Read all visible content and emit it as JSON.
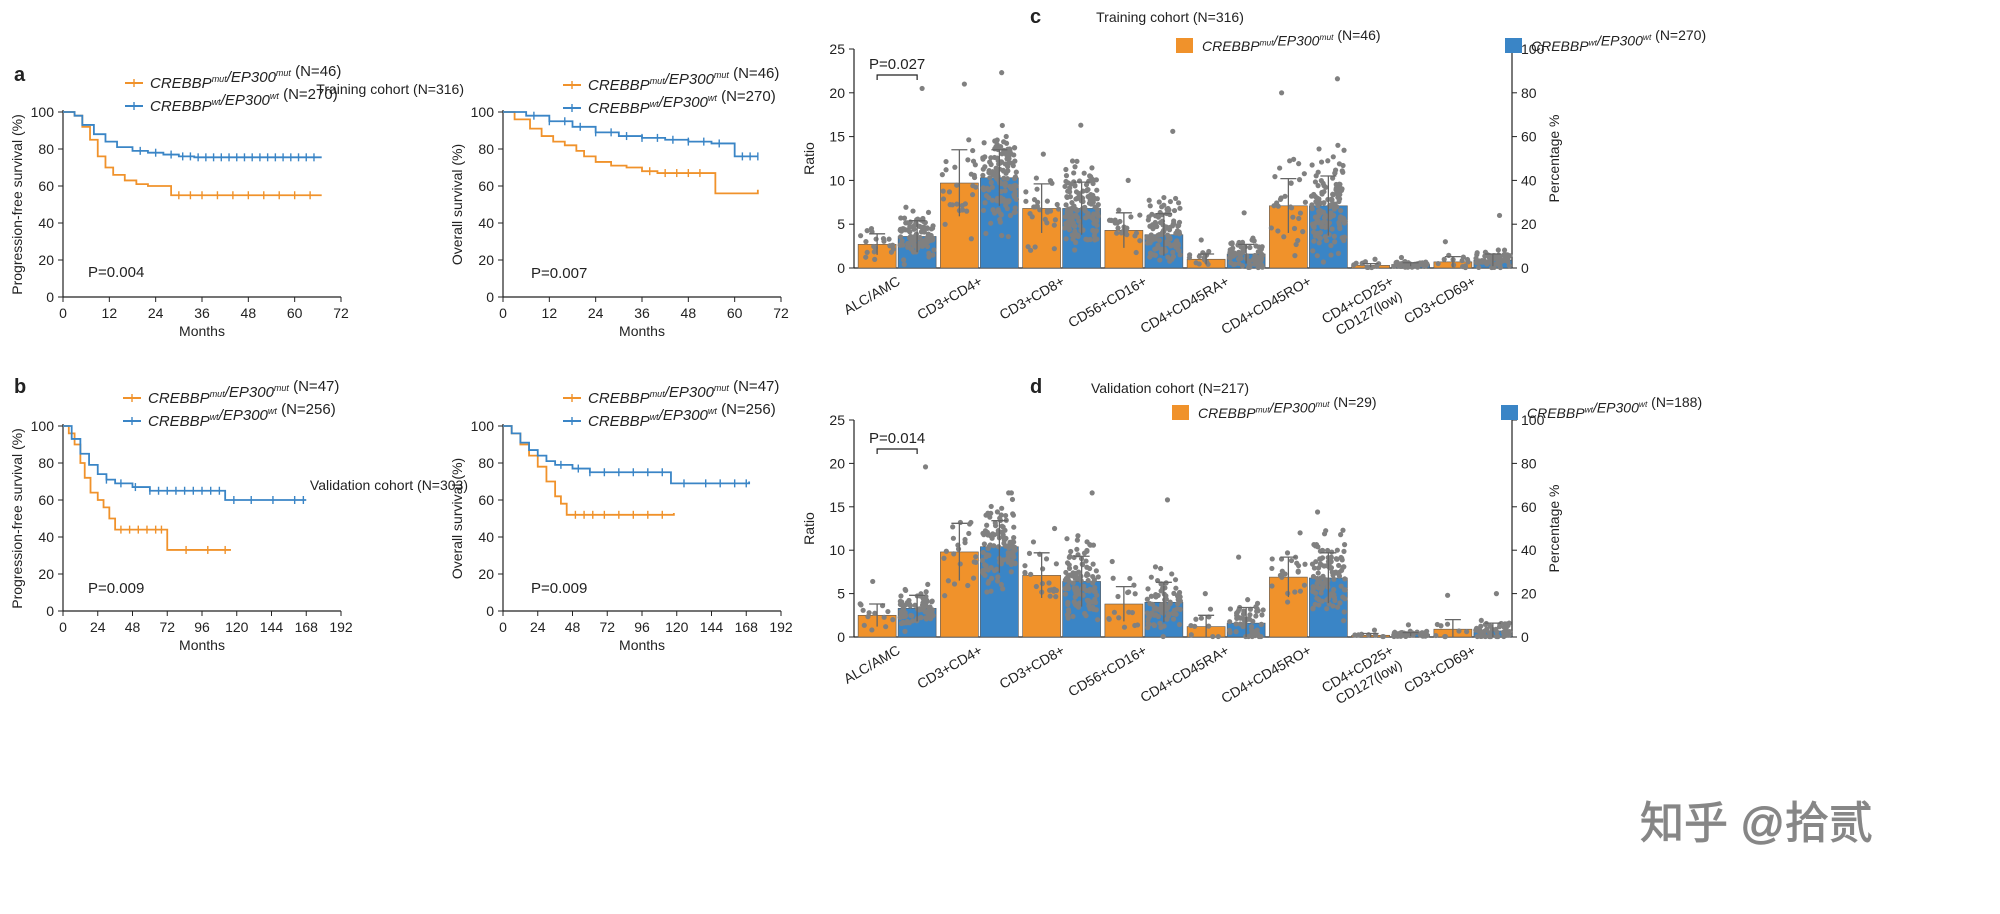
{
  "colors": {
    "orange": "#f0922b",
    "blue": "#3a85c6",
    "dot": "#808080",
    "axis": "#222222"
  },
  "chart_data": [
    {
      "panel": "a",
      "type": "line",
      "subtype": "kaplan-meier",
      "cohort_title": "Training cohort (N=316)",
      "ylabel": "Progression-free survival (%)",
      "xlabel": "Months",
      "xlim": [
        0,
        72
      ],
      "xticks": [
        0,
        12,
        24,
        36,
        48,
        60,
        72
      ],
      "ylim": [
        0,
        100
      ],
      "yticks": [
        0,
        20,
        40,
        60,
        80,
        100
      ],
      "pvalue": "P=0.004",
      "series": [
        {
          "name": "CREBBPmut/EP300mut (N=46)",
          "gene1": "CREBBP",
          "sup1": "mut",
          "gene2": "EP300",
          "sup2": "mut",
          "n": "(N=46)",
          "color": "orange",
          "points": [
            [
              0,
              100
            ],
            [
              3,
              98
            ],
            [
              5,
              92
            ],
            [
              7,
              85
            ],
            [
              9,
              76
            ],
            [
              11,
              70
            ],
            [
              13,
              66
            ],
            [
              16,
              63
            ],
            [
              19,
              61
            ],
            [
              22,
              60
            ],
            [
              26,
              60
            ],
            [
              28,
              55
            ],
            [
              67,
              55
            ]
          ],
          "censors": [
            30,
            33,
            36,
            40,
            44,
            48,
            52,
            56,
            60,
            64
          ]
        },
        {
          "name": "CREBBPwt/EP300wt (N=270)",
          "gene1": "CREBBP",
          "sup1": "wt",
          "gene2": "EP300",
          "sup2": "wt",
          "n": "(N=270)",
          "color": "blue",
          "points": [
            [
              0,
              100
            ],
            [
              3,
              98
            ],
            [
              5,
              93
            ],
            [
              8,
              88
            ],
            [
              11,
              84
            ],
            [
              14,
              81
            ],
            [
              18,
              79
            ],
            [
              22,
              78
            ],
            [
              26,
              77
            ],
            [
              30,
              76
            ],
            [
              34,
              75.5
            ],
            [
              67,
              75.5
            ]
          ],
          "censors": [
            20,
            24,
            28,
            31,
            33,
            35,
            37,
            39,
            41,
            43,
            45,
            47,
            49,
            51,
            53,
            55,
            57,
            59,
            61,
            63,
            65
          ]
        }
      ]
    },
    {
      "panel": "a2",
      "type": "line",
      "subtype": "kaplan-meier",
      "ylabel": "Overall survival (%)",
      "xlabel": "Months",
      "xlim": [
        0,
        72
      ],
      "xticks": [
        0,
        12,
        24,
        36,
        48,
        60,
        72
      ],
      "ylim": [
        0,
        100
      ],
      "yticks": [
        0,
        20,
        40,
        60,
        80,
        100
      ],
      "pvalue": "P=0.007",
      "series": [
        {
          "name": "CREBBPmut/EP300mut (N=46)",
          "gene1": "CREBBP",
          "sup1": "mut",
          "gene2": "EP300",
          "sup2": "mut",
          "n": "(N=46)",
          "color": "orange",
          "points": [
            [
              0,
              100
            ],
            [
              3,
              96
            ],
            [
              7,
              91
            ],
            [
              10,
              87
            ],
            [
              13,
              84
            ],
            [
              16,
              82
            ],
            [
              19,
              79
            ],
            [
              21,
              76
            ],
            [
              24,
              73
            ],
            [
              28,
              71
            ],
            [
              32,
              70
            ],
            [
              36,
              68
            ],
            [
              40,
              67
            ],
            [
              54,
              67
            ],
            [
              55,
              56
            ],
            [
              66,
              56
            ],
            [
              66,
              58
            ]
          ],
          "censors": [
            38,
            42,
            45,
            48,
            51
          ]
        },
        {
          "name": "CREBBPwt/EP300wt (N=270)",
          "gene1": "CREBBP",
          "sup1": "wt",
          "gene2": "EP300",
          "sup2": "wt",
          "n": "(N=270)",
          "color": "blue",
          "points": [
            [
              0,
              100
            ],
            [
              6,
              98
            ],
            [
              12,
              95
            ],
            [
              18,
              92
            ],
            [
              24,
              89
            ],
            [
              30,
              87
            ],
            [
              36,
              86
            ],
            [
              42,
              85
            ],
            [
              48,
              84
            ],
            [
              54,
              83
            ],
            [
              60,
              83
            ],
            [
              60,
              76
            ],
            [
              66,
              76
            ]
          ],
          "censors": [
            8,
            12,
            16,
            20,
            24,
            28,
            32,
            36,
            40,
            44,
            48,
            52,
            56,
            62,
            64,
            66
          ]
        }
      ]
    },
    {
      "panel": "b",
      "type": "line",
      "subtype": "kaplan-meier",
      "cohort_title": "Validation cohort (N=303)",
      "ylabel": "Progression-free survival (%)",
      "xlabel": "Months",
      "xlim": [
        0,
        192
      ],
      "xticks": [
        0,
        24,
        48,
        72,
        96,
        120,
        144,
        168,
        192
      ],
      "ylim": [
        0,
        100
      ],
      "yticks": [
        0,
        20,
        40,
        60,
        80,
        100
      ],
      "pvalue": "P=0.009",
      "series": [
        {
          "name": "CREBBPmut/EP300mut (N=47)",
          "gene1": "CREBBP",
          "sup1": "mut",
          "gene2": "EP300",
          "sup2": "mut",
          "n": "(N=47)",
          "color": "orange",
          "points": [
            [
              0,
              100
            ],
            [
              4,
              96
            ],
            [
              8,
              90
            ],
            [
              12,
              80
            ],
            [
              15,
              72
            ],
            [
              19,
              64
            ],
            [
              24,
              60
            ],
            [
              28,
              56
            ],
            [
              32,
              50
            ],
            [
              36,
              44
            ],
            [
              72,
              44
            ],
            [
              72,
              33
            ],
            [
              116,
              33
            ]
          ],
          "censors": [
            40,
            46,
            52,
            58,
            64,
            68,
            85,
            100,
            112
          ]
        },
        {
          "name": "CREBBPwt/EP300wt (N=256)",
          "gene1": "CREBBP",
          "sup1": "wt",
          "gene2": "EP300",
          "sup2": "wt",
          "n": "(N=256)",
          "color": "blue",
          "points": [
            [
              0,
              100
            ],
            [
              6,
              93
            ],
            [
              12,
              85
            ],
            [
              18,
              79
            ],
            [
              24,
              74
            ],
            [
              30,
              71
            ],
            [
              36,
              69
            ],
            [
              48,
              67
            ],
            [
              60,
              65
            ],
            [
              112,
              65
            ],
            [
              112,
              60
            ],
            [
              168,
              60
            ]
          ],
          "censors": [
            30,
            40,
            50,
            60,
            66,
            72,
            78,
            84,
            90,
            96,
            102,
            108,
            118,
            130,
            145,
            160,
            166
          ]
        }
      ]
    },
    {
      "panel": "b2",
      "type": "line",
      "subtype": "kaplan-meier",
      "ylabel": "Overall survival (%)",
      "xlabel": "Months",
      "xlim": [
        0,
        192
      ],
      "xticks": [
        0,
        24,
        48,
        72,
        96,
        120,
        144,
        168,
        192
      ],
      "ylim": [
        0,
        100
      ],
      "yticks": [
        0,
        20,
        40,
        60,
        80,
        100
      ],
      "pvalue": "P=0.009",
      "series": [
        {
          "name": "CREBBPmut/EP300mut (N=47)",
          "gene1": "CREBBP",
          "sup1": "mut",
          "gene2": "EP300",
          "sup2": "mut",
          "n": "(N=47)",
          "color": "orange",
          "points": [
            [
              0,
              100
            ],
            [
              6,
              96
            ],
            [
              12,
              90
            ],
            [
              18,
              84
            ],
            [
              24,
              78
            ],
            [
              30,
              70
            ],
            [
              36,
              62
            ],
            [
              40,
              58
            ],
            [
              44,
              52
            ],
            [
              118,
              52
            ],
            [
              118,
              53
            ]
          ],
          "censors": [
            50,
            56,
            62,
            70,
            80,
            90,
            100,
            110
          ]
        },
        {
          "name": "CREBBPwt/EP300wt (N=256)",
          "gene1": "CREBBP",
          "sup1": "wt",
          "gene2": "EP300",
          "sup2": "wt",
          "n": "(N=256)",
          "color": "blue",
          "points": [
            [
              0,
              100
            ],
            [
              6,
              96
            ],
            [
              12,
              91
            ],
            [
              18,
              87
            ],
            [
              24,
              84
            ],
            [
              30,
              81
            ],
            [
              36,
              79
            ],
            [
              48,
              77
            ],
            [
              60,
              75
            ],
            [
              116,
              75
            ],
            [
              116,
              69
            ],
            [
              170,
              69
            ],
            [
              170,
              70
            ]
          ],
          "censors": [
            40,
            52,
            60,
            70,
            80,
            90,
            100,
            110,
            125,
            140,
            150,
            160,
            168
          ]
        }
      ]
    },
    {
      "panel": "c",
      "type": "bar",
      "title": "Training cohort (N=316)",
      "ylabel": "Ratio",
      "y2label": "Percentage %",
      "ylim": [
        0,
        25
      ],
      "yticks": [
        0,
        5,
        10,
        15,
        20,
        25
      ],
      "y2lim": [
        0,
        100
      ],
      "y2ticks": [
        0,
        20,
        40,
        60,
        80,
        100
      ],
      "categories": [
        "ALC/AMC",
        "CD3+CD4+",
        "CD3+CD8+",
        "CD56+CD16+",
        "CD4+CD45RA+",
        "CD4+CD45RO+",
        "CD4+CD25+ CD127(low)",
        "CD3+CD69+"
      ],
      "annotation": {
        "text": "P=0.027",
        "category": "ALC/AMC"
      },
      "series": [
        {
          "name": "CREBBPmut/EP300mut (N=46)",
          "gene1": "CREBBP",
          "sup1": "mut",
          "gene2": "EP300",
          "sup2": "mut",
          "n": "(N=46)",
          "color": "orange",
          "values": [
            2.7,
            9.7,
            6.8,
            4.3,
            1.0,
            7.1,
            0.3,
            0.7
          ],
          "sd": [
            1.2,
            3.8,
            2.8,
            2.0,
            0.6,
            3.1,
            0.2,
            0.6
          ],
          "maxes": [
            4.5,
            21.0,
            13.0,
            10.0,
            3.2,
            20.0,
            1.0,
            3.0
          ],
          "n_dots": 30
        },
        {
          "name": "CREBBPwt/EP300wt (N=270)",
          "gene1": "CREBBP",
          "sup1": "wt",
          "gene2": "EP300",
          "sup2": "wt",
          "n": "(N=270)",
          "color": "blue",
          "values": [
            3.6,
            10.3,
            6.8,
            3.8,
            1.6,
            7.1,
            0.4,
            0.9
          ],
          "sd": [
            1.8,
            3.2,
            3.0,
            2.4,
            1.1,
            3.4,
            0.2,
            0.7
          ],
          "maxes": [
            20.5,
            22.3,
            16.3,
            15.6,
            6.3,
            21.6,
            1.2,
            6.0
          ],
          "n_dots": 140
        }
      ]
    },
    {
      "panel": "d",
      "type": "bar",
      "title": "Validation cohort (N=217)",
      "ylabel": "Ratio",
      "y2label": "Percentage %",
      "ylim": [
        0,
        25
      ],
      "yticks": [
        0,
        5,
        10,
        15,
        20,
        25
      ],
      "y2lim": [
        0,
        100
      ],
      "y2ticks": [
        0,
        20,
        40,
        60,
        80,
        100
      ],
      "categories": [
        "ALC/AMC",
        "CD3+CD4+",
        "CD3+CD8+",
        "CD56+CD16+",
        "CD4+CD45RA+",
        "CD4+CD45RO+",
        "CD4+CD25+ CD127(low)",
        "CD3+CD69+"
      ],
      "annotation": {
        "text": "P=0.014",
        "category": "ALC/AMC"
      },
      "series": [
        {
          "name": "CREBBPmut/EP300mut (N=29)",
          "gene1": "CREBBP",
          "sup1": "mut",
          "gene2": "EP300",
          "sup2": "mut",
          "n": "(N=29)",
          "color": "orange",
          "values": [
            2.5,
            9.8,
            7.1,
            3.8,
            1.2,
            6.9,
            0.2,
            0.9
          ],
          "sd": [
            1.3,
            3.3,
            2.6,
            2.0,
            1.3,
            2.3,
            0.2,
            1.1
          ],
          "maxes": [
            6.4,
            13.2,
            12.5,
            8.7,
            5.0,
            12.0,
            0.8,
            4.8
          ],
          "n_dots": 22
        },
        {
          "name": "CREBBPwt/EP300wt (N=188)",
          "gene1": "CREBBP",
          "sup1": "wt",
          "gene2": "EP300",
          "sup2": "wt",
          "n": "(N=188)",
          "color": "blue",
          "values": [
            3.3,
            10.4,
            6.4,
            4.0,
            1.6,
            6.8,
            0.3,
            0.7
          ],
          "sd": [
            1.5,
            3.0,
            2.9,
            2.3,
            1.8,
            2.9,
            0.2,
            0.9
          ],
          "maxes": [
            19.6,
            16.6,
            16.6,
            15.8,
            9.2,
            14.4,
            1.4,
            5.0
          ],
          "n_dots": 110
        }
      ]
    }
  ],
  "watermark": "知乎 @拾贰"
}
